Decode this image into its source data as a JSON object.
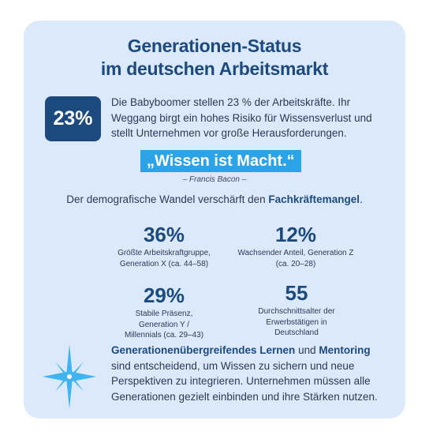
{
  "title": {
    "line1": "Generationen-Status",
    "line2": "im deutschen Arbeitsmarkt"
  },
  "intro": {
    "badge": "23%",
    "text": "Die Babyboomer stellen 23 % der Arbeitskräfte. Ihr Weggang birgt ein hohes Risiko für Wissensverlust und stellt Unternehmen vor große Herausforderungen."
  },
  "quote": {
    "text": "„Wissen ist Macht.“",
    "author": "– Francis Bacon –"
  },
  "demographic": {
    "prefix": "Der demografische Wandel verschärft den ",
    "highlight": "Fachkräftemangel",
    "suffix": "."
  },
  "stats": [
    {
      "value": "36%",
      "desc": "Größte Arbeitskraftgruppe, Generation X (ca. 44–58)"
    },
    {
      "value": "12%",
      "desc": "Wachsender Anteil, Generation Z (ca. 20–28)"
    },
    {
      "value": "29%",
      "desc": "Stabile Präsenz, Generation Y / Millennials (ca. 29–43)"
    },
    {
      "value": "55",
      "desc": "Durchschnittsalter der Erwerbstätigen in Deutschland"
    }
  ],
  "closing": {
    "bold1": "Generationenübergreifendes Lernen",
    "mid": " und ",
    "bold2": "Mentoring",
    "rest": " sind entscheidend, um Wissen zu sichern und neue Perspektiven zu integrieren. Unternehmen müssen alle Generationen gezielt einbinden und ihre Stärken nutzen."
  },
  "colors": {
    "card_background": "#dbe9fb",
    "primary_navy": "#1d4a7e",
    "quote_blue": "#2aa3e8",
    "star_blue": "#3fb4f0"
  },
  "icons": {
    "star": "sparkle-star-icon"
  }
}
